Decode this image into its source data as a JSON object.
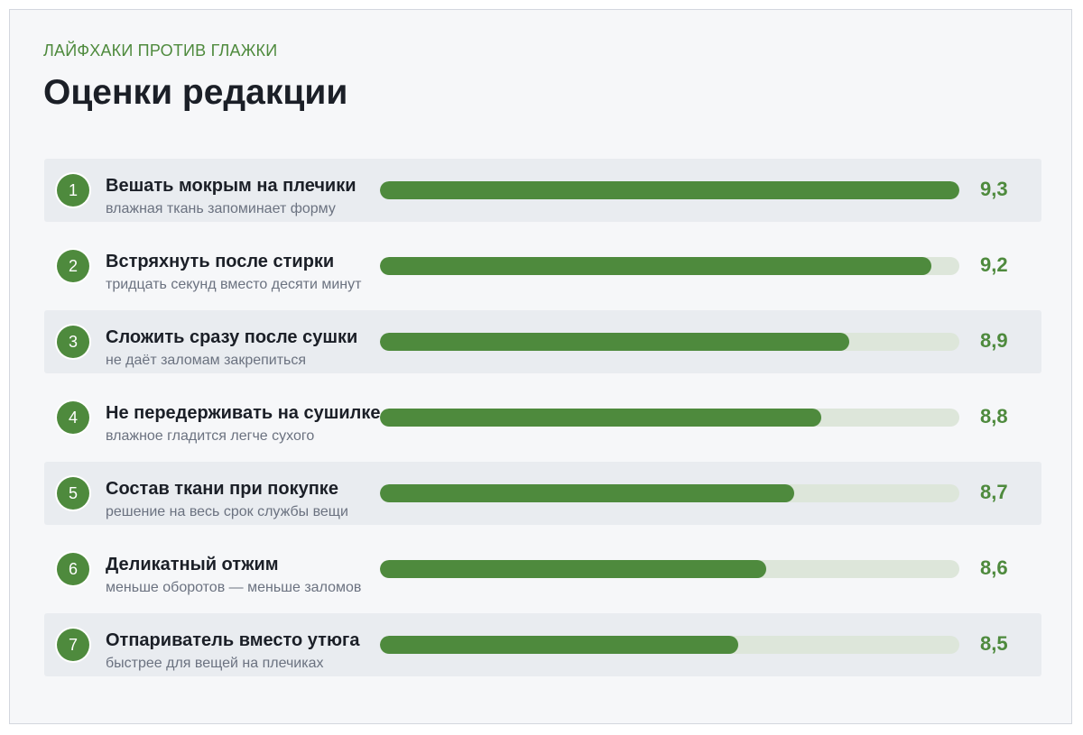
{
  "header": {
    "kicker": "ЛАЙФХАКИ ПРОТИВ ГЛАЖКИ",
    "title": "Оценки редакции"
  },
  "colors": {
    "accent": "#4e8a3d",
    "track": "#dde6da",
    "row_shade": "#e9ecf0",
    "card_bg": "#f6f7f9"
  },
  "chart_data": {
    "type": "bar",
    "orientation": "horizontal",
    "title": "Оценки редакции",
    "subtitle": "ЛАЙФХАКИ ПРОТИВ ГЛАЖКИ",
    "xlim": [
      7.2,
      9.3
    ],
    "grid": false,
    "categories": [
      "Вешать мокрым на плечики",
      "Встряхнуть после стирки",
      "Сложить сразу после сушки",
      "Не передерживать на сушилке",
      "Состав ткани при покупке",
      "Деликатный отжим",
      "Отпариватель вместо утюга"
    ],
    "values": [
      9.3,
      9.2,
      8.9,
      8.8,
      8.7,
      8.6,
      8.5
    ],
    "value_labels": [
      "9,3",
      "9,2",
      "8,9",
      "8,8",
      "8,7",
      "8,6",
      "8,5"
    ],
    "ranks": [
      "1",
      "2",
      "3",
      "4",
      "5",
      "6",
      "7"
    ],
    "descriptions": [
      "влажная ткань запоминает форму",
      "тридцать секунд вместо десяти минут",
      "не даёт заломам закрепиться",
      "влажное гладится легче сухого",
      "решение на весь срок службы вещи",
      "меньше оборотов — меньше заломов",
      "быстрее для вещей на плечиках"
    ]
  }
}
